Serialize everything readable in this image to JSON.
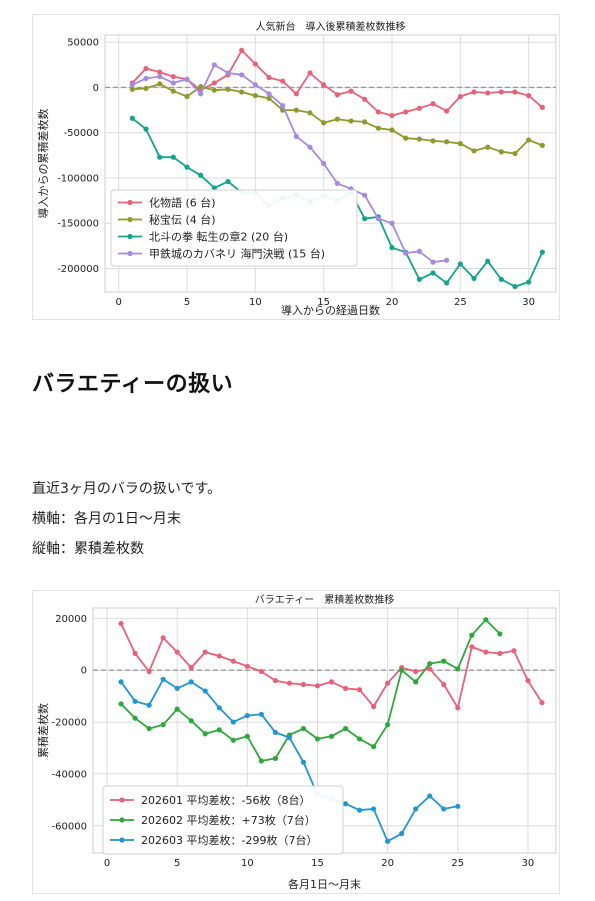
{
  "section": {
    "title": "バラエティーの扱い",
    "description": "直近3ヶ月のバラの扱いです。",
    "x_axis_note": "横軸：各月の1日～月末",
    "y_axis_note": "縦軸：累積差枚数"
  },
  "chart_data": [
    {
      "type": "line",
      "title": "人気新台　導入後累積差枚数推移",
      "xlabel": "導入からの経過日数",
      "ylabel": "導入からの累積差枚数",
      "xlim": [
        -1,
        32
      ],
      "ylim": [
        -226000,
        58000
      ],
      "xticks": [
        0,
        5,
        10,
        15,
        20,
        25,
        30
      ],
      "yticks": [
        50000,
        0,
        -50000,
        -100000,
        -150000,
        -200000
      ],
      "grid": true,
      "zero_line": true,
      "legend_position": "lower-left",
      "series": [
        {
          "name": "化物語 (6 台)",
          "color": "#e8617a",
          "x": [
            1,
            2,
            3,
            4,
            5,
            6,
            7,
            8,
            9,
            10,
            11,
            12,
            13,
            14,
            15,
            16,
            17,
            18,
            19,
            20,
            21,
            22,
            23,
            24,
            25,
            26,
            27,
            28,
            29,
            30,
            31
          ],
          "values": [
            5000,
            21000,
            17000,
            12000,
            9000,
            -3000,
            5000,
            14000,
            41000,
            26000,
            11000,
            7000,
            -7000,
            16000,
            3000,
            -8000,
            -4000,
            -13000,
            -27000,
            -31000,
            -27000,
            -23000,
            -18000,
            -26000,
            -10000,
            -5000,
            -6000,
            -5000,
            -5000,
            -9000,
            -22000
          ]
        },
        {
          "name": "秘宝伝 (4 台)",
          "color": "#8d9a2e",
          "x": [
            1,
            2,
            3,
            4,
            5,
            6,
            7,
            8,
            9,
            10,
            11,
            12,
            13,
            14,
            15,
            16,
            17,
            18,
            19,
            20,
            21,
            22,
            23,
            24,
            25,
            26,
            27,
            28,
            29,
            30,
            31
          ],
          "values": [
            -2000,
            -1000,
            4000,
            -4000,
            -10000,
            1000,
            -3000,
            -2000,
            -5000,
            -9000,
            -12000,
            -25000,
            -25000,
            -28000,
            -39000,
            -35000,
            -37000,
            -38000,
            -45000,
            -47000,
            -56000,
            -57000,
            -59000,
            -60000,
            -62000,
            -70000,
            -66000,
            -71000,
            -73000,
            -58000,
            -64000
          ]
        },
        {
          "name": "北斗の拳 転生の章2 (20 台)",
          "color": "#14a38b",
          "x": [
            1,
            2,
            3,
            4,
            5,
            6,
            7,
            8,
            9,
            10,
            11,
            12,
            13,
            14,
            15,
            16,
            17,
            18,
            19,
            20,
            21,
            22,
            23,
            24,
            25,
            26,
            27,
            28,
            29,
            30,
            31
          ],
          "values": [
            -34000,
            -46000,
            -77000,
            -77000,
            -88000,
            -97000,
            -111000,
            -104000,
            -116000,
            -116000,
            -131000,
            -122000,
            -119000,
            -126000,
            -120000,
            -125000,
            -116000,
            -145000,
            -143000,
            -177000,
            -182000,
            -212000,
            -205000,
            -216000,
            -195000,
            -211000,
            -192000,
            -212000,
            -220000,
            -215000,
            -182000
          ]
        },
        {
          "name": "甲鉄城のカバネリ 海門決戦 (15 台)",
          "color": "#a58ae0",
          "x": [
            1,
            2,
            3,
            4,
            5,
            6,
            7,
            8,
            9,
            10,
            11,
            12,
            13,
            14,
            15,
            16,
            17,
            18,
            19,
            20,
            21,
            22,
            23,
            24
          ],
          "values": [
            3000,
            10000,
            12000,
            5000,
            9000,
            -7000,
            25000,
            16000,
            14000,
            3000,
            -7000,
            -20000,
            -54000,
            -66000,
            -84000,
            -106000,
            -112000,
            -119000,
            -145000,
            -150000,
            -183000,
            -181000,
            -193000,
            -191000
          ]
        }
      ]
    },
    {
      "type": "line",
      "title": "バラエティー　累積差枚数推移",
      "xlabel": "各月1日～月末",
      "ylabel": "累積差枚数",
      "xlim": [
        -1,
        32
      ],
      "ylim": [
        -70500,
        24000
      ],
      "xticks": [
        0,
        5,
        10,
        15,
        20,
        25,
        30
      ],
      "yticks": [
        20000,
        0,
        -20000,
        -40000,
        -60000
      ],
      "grid": true,
      "zero_line": true,
      "legend_position": "lower-left",
      "series": [
        {
          "name": "202601 平均差枚：-56枚（8台）",
          "color": "#e8617a",
          "x": [
            1,
            2,
            3,
            4,
            5,
            6,
            7,
            8,
            9,
            10,
            11,
            12,
            13,
            14,
            15,
            16,
            17,
            18,
            19,
            20,
            21,
            22,
            23,
            24,
            25,
            26,
            27,
            28,
            29,
            30,
            31
          ],
          "values": [
            18000,
            6500,
            -500,
            12500,
            7000,
            1000,
            7000,
            5500,
            3500,
            1500,
            -500,
            -4000,
            -5000,
            -5500,
            -6000,
            -4500,
            -7000,
            -7500,
            -14000,
            -5000,
            1000,
            -500,
            500,
            -5500,
            -14500,
            9000,
            7000,
            6500,
            7500,
            -4000,
            -12500
          ]
        },
        {
          "name": "202602 平均差枚：+73枚（7台）",
          "color": "#2ea83d",
          "x": [
            1,
            2,
            3,
            4,
            5,
            6,
            7,
            8,
            9,
            10,
            11,
            12,
            13,
            14,
            15,
            16,
            17,
            18,
            19,
            20,
            21,
            22,
            23,
            24,
            25,
            26,
            27,
            28
          ],
          "values": [
            -13000,
            -18500,
            -22500,
            -21000,
            -15000,
            -19500,
            -24500,
            -23000,
            -27000,
            -25500,
            -35000,
            -34000,
            -25000,
            -22500,
            -26500,
            -25500,
            -22500,
            -26500,
            -29500,
            -21000,
            0,
            -4500,
            2500,
            3500,
            500,
            13500,
            19500,
            14000
          ]
        },
        {
          "name": "202603 平均差枚：-299枚（7台）",
          "color": "#2196d3",
          "x": [
            1,
            2,
            3,
            4,
            5,
            6,
            7,
            8,
            9,
            10,
            11,
            12,
            13,
            14,
            15,
            16,
            17,
            18,
            19,
            20,
            21,
            22,
            23,
            24,
            25
          ],
          "values": [
            -4500,
            -12000,
            -13500,
            -3500,
            -7000,
            -4500,
            -8000,
            -14500,
            -20000,
            -17500,
            -17000,
            -24000,
            -26000,
            -35500,
            -48000,
            -49500,
            -51500,
            -54000,
            -53500,
            -66000,
            -63000,
            -53500,
            -48500,
            -53500,
            -52500
          ]
        }
      ]
    }
  ]
}
